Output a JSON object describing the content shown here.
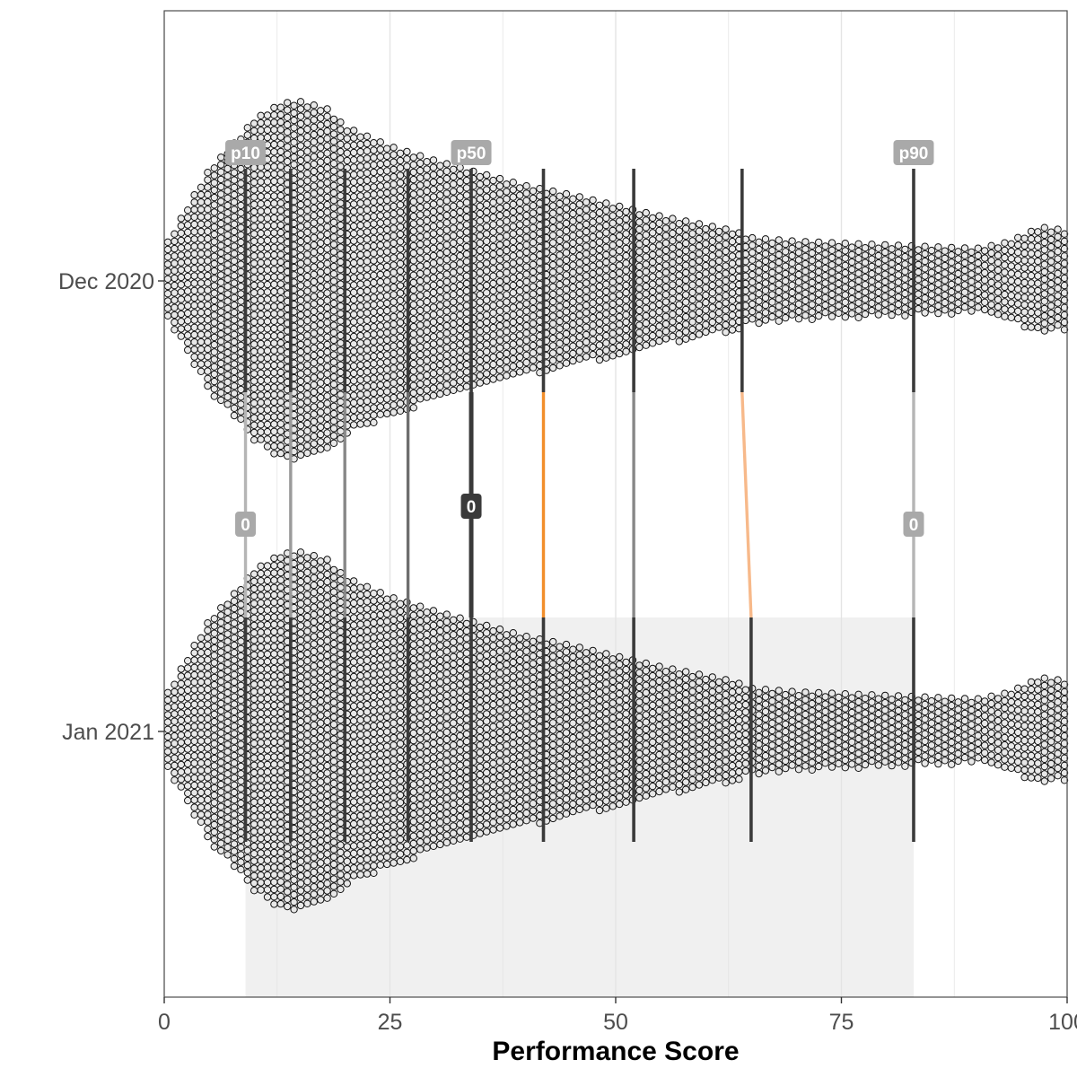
{
  "chart_data": {
    "type": "beeswarm",
    "xlabel": "Performance Score",
    "ylabel": "",
    "xlim": [
      0,
      100
    ],
    "x_ticks": [
      "0",
      "25",
      "50",
      "75",
      "100"
    ],
    "grid": true,
    "categories": [
      "Dec 2020",
      "Jan 2021"
    ],
    "distribution_shape": {
      "x": [
        0,
        3,
        5,
        8,
        10,
        13,
        15,
        18,
        20,
        25,
        30,
        35,
        40,
        45,
        50,
        55,
        60,
        63,
        65,
        70,
        75,
        80,
        85,
        90,
        93,
        95,
        97,
        100
      ],
      "relative_width": [
        0.18,
        0.45,
        0.62,
        0.78,
        0.9,
        0.99,
        1.0,
        0.96,
        0.86,
        0.75,
        0.67,
        0.6,
        0.53,
        0.48,
        0.42,
        0.36,
        0.31,
        0.28,
        0.24,
        0.22,
        0.21,
        0.2,
        0.19,
        0.18,
        0.21,
        0.25,
        0.3,
        0.28
      ]
    },
    "percentile_lines": {
      "dec_2020": [
        9,
        14,
        20,
        27,
        34,
        42,
        52,
        64,
        83
      ],
      "jan_2021": [
        9,
        14,
        20,
        27,
        34,
        42,
        52,
        65,
        83
      ]
    },
    "percentile_labels": [
      {
        "text": "p10",
        "x": 9
      },
      {
        "text": "p50",
        "x": 34
      },
      {
        "text": "p90",
        "x": 83
      }
    ],
    "change_labels": [
      {
        "text": "0",
        "x": 9,
        "style": "light"
      },
      {
        "text": "0",
        "x": 34,
        "style": "dark"
      },
      {
        "text": "0",
        "x": 83,
        "style": "light"
      }
    ],
    "highlight_range": [
      9,
      83
    ],
    "colors": {
      "point_fill": "#e8e8e8",
      "point_stroke": "#111111",
      "line_dark": "#3a3a3a",
      "line_light": "#b5b5b5",
      "change_orange": "#f28e2b",
      "change_orange_light": "#f7b98a",
      "label_gray": "#a9a9a9",
      "label_dark": "#3a3a3a",
      "highlight": "#f0f0f0",
      "grid": "#e4e4e4"
    }
  }
}
